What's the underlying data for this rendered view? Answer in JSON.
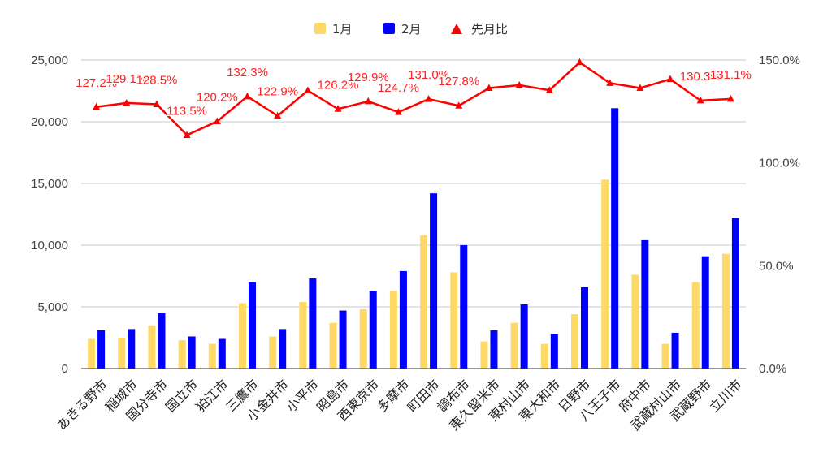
{
  "chart_data": {
    "type": "bar",
    "categories": [
      "あきる野市",
      "稲城市",
      "国分寺市",
      "国立市",
      "狛江市",
      "三鷹市",
      "小金井市",
      "小平市",
      "昭島市",
      "西東京市",
      "多摩市",
      "町田市",
      "調布市",
      "東久留米市",
      "東村山市",
      "東大和市",
      "日野市",
      "八王子市",
      "府中市",
      "武蔵村山市",
      "武蔵野市",
      "立川市"
    ],
    "series": [
      {
        "name": "1月",
        "axis": "left",
        "color": "#ffd966",
        "values": [
          2400,
          2500,
          3500,
          2300,
          2000,
          5300,
          2600,
          5400,
          3700,
          4800,
          6300,
          10800,
          7800,
          2200,
          3700,
          2000,
          4400,
          15300,
          7600,
          2000,
          7000,
          9300
        ]
      },
      {
        "name": "2月",
        "axis": "left",
        "color": "#0000ff",
        "values": [
          3100,
          3200,
          4500,
          2600,
          2400,
          7000,
          3200,
          7300,
          4700,
          6300,
          7900,
          14200,
          10000,
          3100,
          5200,
          2800,
          6600,
          21100,
          10400,
          2900,
          9100,
          12200
        ]
      },
      {
        "name": "先月比",
        "axis": "right",
        "type": "line",
        "color": "#ff0000",
        "marker": "triangle",
        "values": [
          127.2,
          129.1,
          128.5,
          113.5,
          120.2,
          132.3,
          122.9,
          135.2,
          126.2,
          129.9,
          124.7,
          131.0,
          127.8,
          136.4,
          137.8,
          135.3,
          148.9,
          138.8,
          136.4,
          140.7,
          130.3,
          131.1
        ],
        "labels": [
          "127.2%",
          "129.1%",
          "128.5%",
          "113.5%",
          "120.2%",
          "132.3%",
          "122.9%",
          "",
          "126.2%",
          "129.9%",
          "124.7%",
          "131.0%",
          "127.8%",
          "",
          "",
          "",
          "",
          "",
          "",
          "",
          "130.3%",
          "131.1%"
        ]
      }
    ],
    "yleft": {
      "min": 0,
      "max": 25000,
      "ticks": [
        "0",
        "5,000",
        "10,000",
        "15,000",
        "20,000",
        "25,000"
      ],
      "tick_values": [
        0,
        5000,
        10000,
        15000,
        20000,
        25000
      ]
    },
    "yright": {
      "min": 0,
      "max": 150,
      "ticks": [
        "0.0%",
        "50.0%",
        "100.0%",
        "150.0%"
      ],
      "tick_values": [
        0,
        50,
        100,
        150
      ]
    },
    "legend": {
      "position": "top",
      "items": [
        "1月",
        "2月",
        "先月比"
      ]
    },
    "grid": true
  }
}
